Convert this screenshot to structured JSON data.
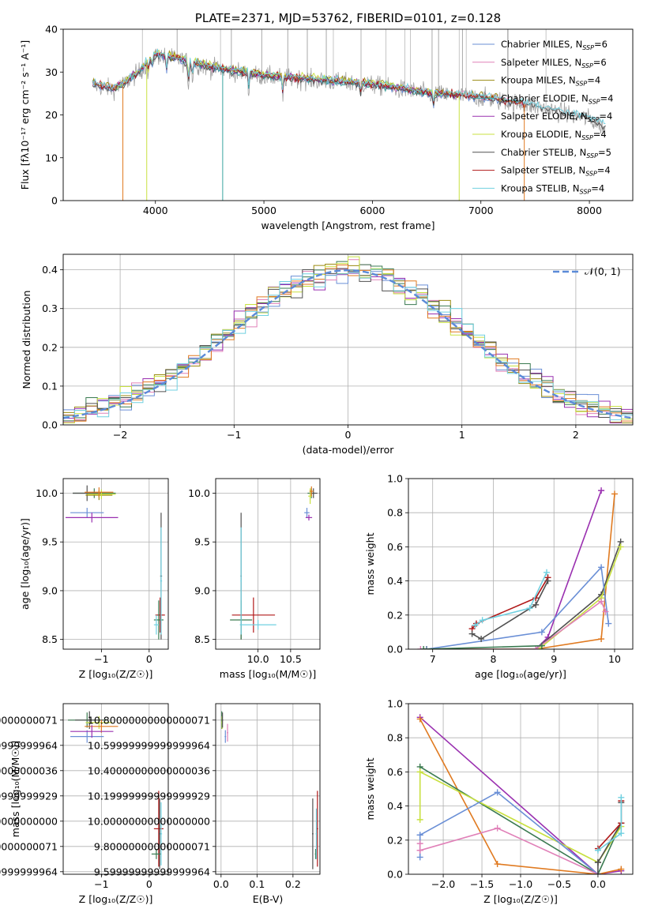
{
  "chart_data": [
    {
      "id": "spectrum",
      "type": "line",
      "title": "PLATE=2371, MJD=53762, FIBERID=0101, z=0.128",
      "xlabel": "wavelength [Angstrom, rest frame]",
      "ylabel": "Flux [fλ10⁻¹⁷ erg cm⁻² s⁻¹ A⁻¹]",
      "xlim": [
        3150,
        8400
      ],
      "ylim": [
        0,
        40
      ],
      "xticks": [
        4000,
        5000,
        6000,
        7000,
        8000
      ],
      "yticks": [
        0,
        10,
        20,
        30,
        40
      ],
      "grid": false,
      "legend_position": "upper-right",
      "series": [
        {
          "name": "Chabrier MILES, N_SSP=6",
          "color": "#6a8fd6",
          "end": 7400
        },
        {
          "name": "Salpeter MILES, N_SSP=6",
          "color": "#e080b8",
          "end": 7400
        },
        {
          "name": "Kroupa MILES, N_SSP=4",
          "color": "#9a8a10",
          "end": 7400
        },
        {
          "name": "Chabrier ELODIE, N_SSP=4",
          "color": "#3aa5a0",
          "end": 6800
        },
        {
          "name": "Salpeter ELODIE, N_SSP=4",
          "color": "#9a30b0",
          "end": 6800
        },
        {
          "name": "Kroupa ELODIE, N_SSP=4",
          "color": "#c8e040",
          "end": 6800
        },
        {
          "name": "Chabrier STELIB, N_SSP=5",
          "color": "#505050",
          "end": 8150
        },
        {
          "name": "Salpeter STELIB, N_SSP=4",
          "color": "#b01818",
          "end": 7420
        },
        {
          "name": "Kroupa STELIB, N_SSP=4",
          "color": "#70d0e0",
          "end": 8150
        }
      ],
      "data_color": "#a0a0a0",
      "continuum": [
        [
          3420,
          27
        ],
        [
          3600,
          26
        ],
        [
          3700,
          27
        ],
        [
          3850,
          30
        ],
        [
          4000,
          34
        ],
        [
          4200,
          33
        ],
        [
          4500,
          31
        ],
        [
          5000,
          29
        ],
        [
          5500,
          28
        ],
        [
          6000,
          27
        ],
        [
          6500,
          25
        ],
        [
          7000,
          24
        ],
        [
          7500,
          22
        ],
        [
          8000,
          19
        ],
        [
          8150,
          17
        ]
      ],
      "absorptions": [
        [
          3933,
          3
        ],
        [
          3968,
          3
        ],
        [
          4102,
          4
        ],
        [
          4304,
          6
        ],
        [
          4340,
          4
        ],
        [
          4861,
          4
        ],
        [
          5175,
          5
        ],
        [
          5890,
          3
        ],
        [
          6563,
          3
        ]
      ],
      "data_spikes": [
        3880,
        4600,
        5640,
        5895,
        6125,
        6300,
        6350,
        6800,
        6865,
        7245,
        7600
      ],
      "model_drops": [
        [
          3700,
          7
        ],
        [
          3920,
          1
        ],
        [
          4620,
          2
        ],
        [
          6800,
          3
        ],
        [
          7400,
          1
        ]
      ],
      "spikes_up": [
        [
          4200,
          43
        ],
        [
          4700,
          43
        ],
        [
          4980,
          42
        ],
        [
          5220,
          43
        ],
        [
          5400,
          42
        ],
        [
          5575,
          44
        ],
        [
          5895,
          43
        ],
        [
          6550,
          43
        ],
        [
          6610,
          43
        ],
        [
          6830,
          40
        ],
        [
          7250,
          44
        ]
      ]
    },
    {
      "id": "residuals",
      "type": "histogram",
      "xlabel": "(data-model)/error",
      "ylabel": "Normed distribution",
      "xlim": [
        -2.5,
        2.5
      ],
      "ylim": [
        0,
        0.44
      ],
      "xticks": [
        -2,
        -1,
        0,
        1,
        2
      ],
      "yticks": [
        0.0,
        0.1,
        0.2,
        0.3,
        0.4
      ],
      "grid": true,
      "legend": [
        "𝒩(0, 1)"
      ],
      "reference_curve": {
        "name": "𝒩(0, 1)",
        "color": "#5b8ad8",
        "mean": 0,
        "sigma": 1,
        "style": "dashed"
      },
      "bin_width": 0.1,
      "series_colors": [
        "#6a8fd6",
        "#e080b8",
        "#9a8a10",
        "#3a7a50",
        "#9a30b0",
        "#c8e040",
        "#505050",
        "#e07a20",
        "#70d0e0"
      ]
    },
    {
      "id": "age_vs_Z",
      "type": "errorbar",
      "xlabel": "Z [log₁₀(Z/Z☉)]",
      "ylabel": "age  [log₁₀(age/yr)]",
      "xlim": [
        -1.8,
        0.4
      ],
      "ylim": [
        8.4,
        10.15
      ],
      "xticks": [
        -1,
        0
      ],
      "yticks": [
        8.5,
        9.0,
        9.5,
        10.0
      ],
      "grid": true,
      "points": [
        {
          "x": -1.15,
          "y": 10.0,
          "xerr": 0.45,
          "yerr": 0.05,
          "color": "#3a7a50"
        },
        {
          "x": -1.3,
          "y": 10.0,
          "xerr": 0.3,
          "yerr": 0.08,
          "color": "#505050"
        },
        {
          "x": -1.05,
          "y": 9.98,
          "xerr": 0.28,
          "yerr": 0.05,
          "color": "#9a8a10"
        },
        {
          "x": -1.0,
          "y": 9.99,
          "xerr": 0.3,
          "yerr": 0.05,
          "color": "#c8e040"
        },
        {
          "x": -1.05,
          "y": 10.01,
          "xerr": 0.3,
          "yerr": 0.05,
          "color": "#e07a20"
        },
        {
          "x": -1.3,
          "y": 9.8,
          "xerr": 0.35,
          "yerr": 0.05,
          "color": "#6a8fd6"
        },
        {
          "x": -1.2,
          "y": 9.75,
          "xerr": 0.55,
          "yerr": 0.05,
          "color": "#9a30b0"
        },
        {
          "x": 0.25,
          "y": 9.15,
          "xerr": 0.02,
          "yerr": 0.65,
          "color": "#505050"
        },
        {
          "x": 0.23,
          "y": 8.75,
          "xerr": 0.1,
          "yerr": 0.18,
          "color": "#b01818"
        },
        {
          "x": 0.2,
          "y": 8.7,
          "xerr": 0.1,
          "yerr": 0.2,
          "color": "#3a7a50"
        },
        {
          "x": 0.25,
          "y": 9.1,
          "xerr": 0.02,
          "yerr": 0.55,
          "color": "#70d0e0"
        },
        {
          "x": 0.15,
          "y": 8.65,
          "xerr": 0.05,
          "yerr": 0.1,
          "color": "#70d0e0"
        }
      ]
    },
    {
      "id": "age_vs_mass",
      "type": "errorbar",
      "xlabel": "mass [log₁₀(M/M☉)]",
      "ylabel": "",
      "xlim": [
        9.35,
        10.95
      ],
      "ylim": [
        8.4,
        10.15
      ],
      "xticks": [
        10.0,
        10.5
      ],
      "yticks": [
        8.5,
        9.0,
        9.5,
        10.0
      ],
      "grid": true,
      "points": [
        {
          "x": 10.82,
          "y": 10.0,
          "xerr": 0.06,
          "yerr": 0.05,
          "color": "#3a7a50"
        },
        {
          "x": 10.85,
          "y": 10.0,
          "xerr": 0.06,
          "yerr": 0.05,
          "color": "#505050"
        },
        {
          "x": 10.8,
          "y": 9.97,
          "xerr": 0.03,
          "yerr": 0.08,
          "color": "#c8e040"
        },
        {
          "x": 10.82,
          "y": 10.02,
          "xerr": 0.03,
          "yerr": 0.05,
          "color": "#e07a20"
        },
        {
          "x": 10.75,
          "y": 9.8,
          "xerr": 0.04,
          "yerr": 0.05,
          "color": "#6a8fd6"
        },
        {
          "x": 10.78,
          "y": 9.75,
          "xerr": 0.05,
          "yerr": 0.03,
          "color": "#9a30b0"
        },
        {
          "x": 9.74,
          "y": 9.15,
          "xerr": 0.01,
          "yerr": 0.65,
          "color": "#505050"
        },
        {
          "x": 9.74,
          "y": 8.7,
          "xerr": 0.17,
          "yerr": 0.2,
          "color": "#3a7a50"
        },
        {
          "x": 9.93,
          "y": 8.75,
          "xerr": 0.33,
          "yerr": 0.18,
          "color": "#b01818"
        },
        {
          "x": 10.0,
          "y": 8.65,
          "xerr": 0.28,
          "yerr": 0.05,
          "color": "#70d0e0"
        },
        {
          "x": 9.74,
          "y": 9.1,
          "xerr": 0.01,
          "yerr": 0.55,
          "color": "#70d0e0"
        }
      ]
    },
    {
      "id": "massweight_vs_age",
      "type": "line",
      "xlabel": "age  [log₁₀(age/yr)]",
      "ylabel": "mass weight",
      "xlim": [
        6.6,
        10.3
      ],
      "ylim": [
        0,
        1.0
      ],
      "xticks": [
        7,
        8,
        9,
        10
      ],
      "yticks": [
        0.0,
        0.2,
        0.4,
        0.6,
        0.8,
        1.0
      ],
      "grid": true,
      "series": [
        {
          "color": "#9a30b0",
          "x": [
            6.9,
            8.7,
            8.9,
            9.78
          ],
          "y": [
            0.0,
            0.0,
            0.07,
            0.93
          ]
        },
        {
          "color": "#e07a20",
          "x": [
            6.9,
            8.7,
            9.78,
            10.0
          ],
          "y": [
            0.0,
            0.0,
            0.06,
            0.91
          ]
        },
        {
          "color": "#505050",
          "x": [
            6.9,
            8.7,
            9.78,
            10.1
          ],
          "y": [
            0.0,
            0.0,
            0.32,
            0.63
          ]
        },
        {
          "color": "#c8e040",
          "x": [
            6.9,
            8.75,
            9.78,
            10.1
          ],
          "y": [
            0.0,
            0.0,
            0.3,
            0.6
          ]
        },
        {
          "color": "#6a8fd6",
          "x": [
            6.9,
            8.8,
            9.78,
            9.9
          ],
          "y": [
            0.0,
            0.1,
            0.48,
            0.15
          ]
        },
        {
          "color": "#e080b8",
          "x": [
            6.8,
            8.7,
            9.78,
            9.85
          ],
          "y": [
            0.0,
            0.0,
            0.28,
            0.22
          ]
        },
        {
          "color": "#b01818",
          "x": [
            7.65,
            7.72,
            8.7,
            8.9
          ],
          "y": [
            0.12,
            0.15,
            0.3,
            0.42
          ]
        },
        {
          "color": "#505050",
          "x": [
            7.65,
            7.8,
            8.7,
            8.9
          ],
          "y": [
            0.09,
            0.06,
            0.26,
            0.4
          ]
        },
        {
          "color": "#70d0e0",
          "x": [
            7.7,
            7.82,
            8.6,
            8.88
          ],
          "y": [
            0.14,
            0.17,
            0.24,
            0.45
          ]
        },
        {
          "color": "#3a7a50",
          "x": [
            6.85,
            8.8
          ],
          "y": [
            0.0,
            0.02
          ]
        }
      ]
    },
    {
      "id": "mass_vs_Z",
      "type": "errorbar",
      "xlabel": "Z [log₁₀(Z/Z☉)]",
      "ylabel": "mass [log₁₀(M/M☉)]",
      "xlim": [
        -1.8,
        0.4
      ],
      "ylim": [
        9.58,
        10.93
      ],
      "xticks": [
        -1,
        0
      ],
      "yticks": [
        9.6,
        9.8,
        10.0,
        10.2,
        10.4,
        10.6,
        10.8
      ],
      "grid": true,
      "points": [
        {
          "x": -1.3,
          "y": 10.8,
          "xerr": 0.4,
          "yerr": 0.06,
          "color": "#3a7a50"
        },
        {
          "x": -1.25,
          "y": 10.8,
          "xerr": 0.3,
          "yerr": 0.07,
          "color": "#505050"
        },
        {
          "x": -1.05,
          "y": 10.78,
          "xerr": 0.28,
          "yerr": 0.05,
          "color": "#c8e040"
        },
        {
          "x": -1.0,
          "y": 10.75,
          "xerr": 0.35,
          "yerr": 0.05,
          "color": "#e07a20"
        },
        {
          "x": -1.3,
          "y": 10.67,
          "xerr": 0.35,
          "yerr": 0.05,
          "color": "#6a8fd6"
        },
        {
          "x": -1.2,
          "y": 10.71,
          "xerr": 0.45,
          "yerr": 0.05,
          "color": "#9a30b0"
        },
        {
          "x": 0.2,
          "y": 9.94,
          "xerr": 0.1,
          "yerr": 0.3,
          "color": "#b01818"
        },
        {
          "x": 0.22,
          "y": 9.9,
          "xerr": 0.02,
          "yerr": 0.28,
          "color": "#505050"
        },
        {
          "x": 0.15,
          "y": 9.74,
          "xerr": 0.1,
          "yerr": 0.04,
          "color": "#3a7a50"
        },
        {
          "x": 0.25,
          "y": 9.9,
          "xerr": 0.02,
          "yerr": 0.25,
          "color": "#70d0e0"
        }
      ]
    },
    {
      "id": "mass_vs_EBV",
      "type": "errorbar",
      "xlabel": "E(B-V)",
      "ylabel": "",
      "xlim": [
        -0.015,
        0.275
      ],
      "ylim": [
        9.58,
        10.93
      ],
      "xticks": [
        0.0,
        0.1,
        0.2
      ],
      "yticks": [
        9.6,
        9.8,
        10.0,
        10.2,
        10.4,
        10.6,
        10.8
      ],
      "grid": true,
      "points": [
        {
          "x": 0.002,
          "y": 10.8,
          "xerr": 0.002,
          "yerr": 0.07,
          "color": "#3a7a50"
        },
        {
          "x": 0.003,
          "y": 10.78,
          "xerr": 0.002,
          "yerr": 0.05,
          "color": "#c8e040"
        },
        {
          "x": 0.004,
          "y": 10.8,
          "xerr": 0.002,
          "yerr": 0.06,
          "color": "#505050"
        },
        {
          "x": 0.012,
          "y": 10.67,
          "xerr": 0.002,
          "yerr": 0.05,
          "color": "#6a8fd6"
        },
        {
          "x": 0.018,
          "y": 10.7,
          "xerr": 0.002,
          "yerr": 0.07,
          "color": "#e080b8"
        },
        {
          "x": 0.255,
          "y": 9.9,
          "xerr": 0.002,
          "yerr": 0.28,
          "color": "#505050"
        },
        {
          "x": 0.268,
          "y": 9.94,
          "xerr": 0.002,
          "yerr": 0.3,
          "color": "#b01818"
        },
        {
          "x": 0.263,
          "y": 9.74,
          "xerr": 0.002,
          "yerr": 0.04,
          "color": "#3a7a50"
        },
        {
          "x": 0.265,
          "y": 9.9,
          "xerr": 0.002,
          "yerr": 0.2,
          "color": "#70d0e0"
        }
      ]
    },
    {
      "id": "massweight_vs_Z",
      "type": "line",
      "xlabel": "Z [log₁₀(Z/Z☉)]",
      "ylabel": "mass weight",
      "xlim": [
        -2.45,
        0.45
      ],
      "ylim": [
        0,
        1.0
      ],
      "xticks": [
        -2.0,
        -1.5,
        -1.0,
        -0.5,
        0.0
      ],
      "yticks": [
        0.0,
        0.2,
        0.4,
        0.6,
        0.8,
        1.0
      ],
      "grid": true,
      "series": [
        {
          "color": "#9a30b0",
          "x": [
            -2.3,
            0.0,
            0.3
          ],
          "y": [
            0.92,
            0.0,
            0.02
          ]
        },
        {
          "color": "#e07a20",
          "x": [
            -2.3,
            -1.3,
            0.0,
            0.3
          ],
          "y": [
            0.91,
            0.06,
            0.0,
            0.03
          ]
        },
        {
          "color": "#3a7a50",
          "x": [
            -2.3,
            0.0,
            0.3
          ],
          "y": [
            0.63,
            0.0,
            0.3
          ]
        },
        {
          "color": "#c8e040",
          "x": [
            -2.3,
            0.0,
            0.3
          ],
          "y": [
            0.6,
            0.07,
            0.28
          ]
        },
        {
          "color": "#c8e040",
          "x": [
            -2.3,
            -2.3
          ],
          "y": [
            0.6,
            0.32
          ]
        },
        {
          "color": "#6a8fd6",
          "x": [
            -2.3,
            -1.3,
            0.0
          ],
          "y": [
            0.23,
            0.48,
            0.0
          ]
        },
        {
          "color": "#6a8fd6",
          "x": [
            -2.3,
            -2.3
          ],
          "y": [
            0.23,
            0.1
          ]
        },
        {
          "color": "#e080b8",
          "x": [
            -2.3,
            -1.3,
            0.0
          ],
          "y": [
            0.14,
            0.27,
            0.0
          ]
        },
        {
          "color": "#e080b8",
          "x": [
            -2.3,
            -2.3
          ],
          "y": [
            0.14,
            0.18
          ]
        },
        {
          "color": "#505050",
          "x": [
            0.0,
            0.3,
            0.3
          ],
          "y": [
            0.07,
            0.3,
            0.42
          ]
        },
        {
          "color": "#b01818",
          "x": [
            0.0,
            0.3,
            0.3
          ],
          "y": [
            0.15,
            0.3,
            0.43
          ]
        },
        {
          "color": "#70d0e0",
          "x": [
            0.0,
            0.3,
            0.3
          ],
          "y": [
            0.14,
            0.24,
            0.45
          ]
        },
        {
          "color": "#505050",
          "x": [
            0.0,
            0.0
          ],
          "y": [
            0.0,
            0.07
          ]
        }
      ]
    }
  ]
}
